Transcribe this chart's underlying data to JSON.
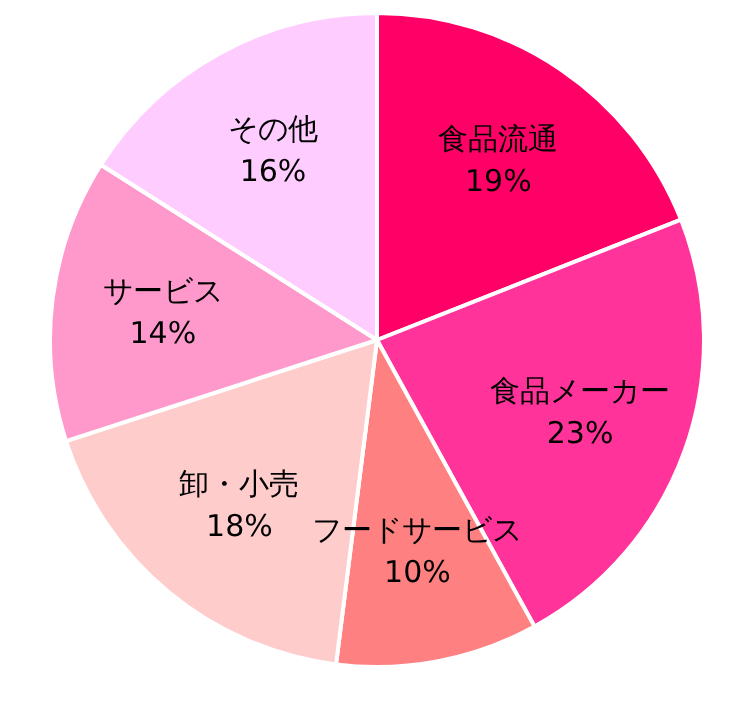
{
  "chart_data": {
    "type": "pie",
    "categories": [
      "食品流通",
      "食品メーカー",
      "フードサービス",
      "卸・小売",
      "サービス",
      "その他"
    ],
    "values": [
      19,
      23,
      10,
      18,
      14,
      16
    ],
    "value_labels": [
      "19%",
      "23%",
      "10%",
      "18%",
      "14%",
      "16%"
    ],
    "colors": [
      "#ff0066",
      "#ff3399",
      "#ff8080",
      "#ffcccc",
      "#ff99cc",
      "#ffccff"
    ],
    "legend": false
  }
}
